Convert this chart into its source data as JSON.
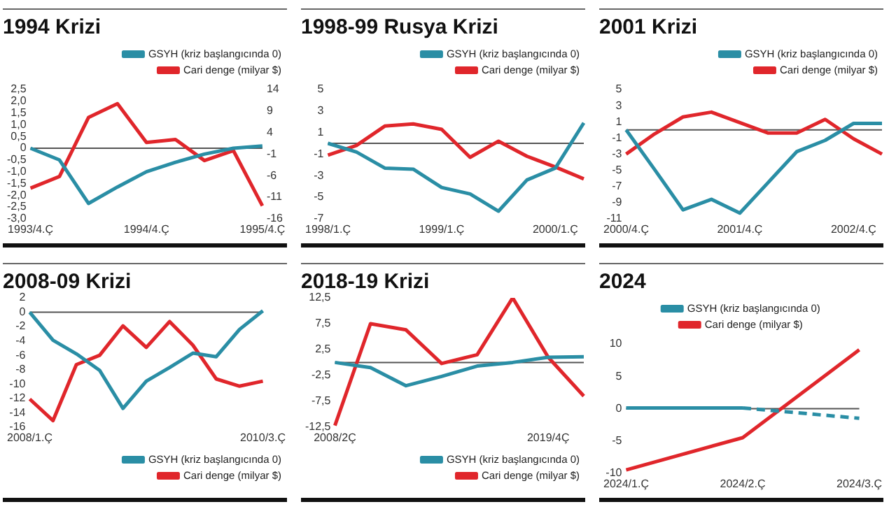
{
  "chart_data": [
    {
      "type": "line",
      "title": "1994 Krizi",
      "categories": [
        "1993/4.Ç",
        null,
        null,
        null,
        "1994/4.Ç",
        null,
        null,
        null,
        "1995/4.Ç"
      ],
      "legend": "top right",
      "series": [
        {
          "name": "GSYH (kriz başlangıcında 0)",
          "color": "#2a8ea5",
          "values": [
            0,
            -0.5,
            -2.35,
            -1.65,
            -1.0,
            -0.6,
            -0.25,
            0,
            0.1
          ]
        },
        {
          "name": "Cari denge (milyar $)",
          "color": "#e0262b",
          "axis": "y2",
          "values": [
            -8.9,
            -6.2,
            7.5,
            10.7,
            1.7,
            2.4,
            -2.5,
            -0.2,
            -13
          ]
        }
      ],
      "ylim": [
        -3,
        2.5
      ],
      "yticks": [
        {
          "value": 2.5,
          "label": "2,5"
        },
        {
          "value": 2,
          "label": "2,0"
        },
        {
          "value": 1.5,
          "label": "1,5"
        },
        {
          "value": 1,
          "label": "1,0"
        },
        {
          "value": 0.5,
          "label": "0,5"
        },
        0,
        {
          "value": -0.5,
          "label": "-0,5"
        },
        {
          "value": -1,
          "label": "-1,0"
        },
        {
          "value": -1.5,
          "label": "-1,5"
        },
        {
          "value": -2,
          "label": "-2,0"
        },
        {
          "value": -2.5,
          "label": "-2,5"
        },
        {
          "value": -3,
          "label": "-3,0"
        }
      ],
      "y2lim": [
        -16,
        14
      ],
      "y2ticks": [
        14,
        9,
        4,
        -1,
        -6,
        -11,
        -16
      ],
      "ref_lines": [
        {
          "axis": "y",
          "value": 0,
          "color": "#555555"
        }
      ]
    },
    {
      "type": "line",
      "title": "1998-99 Rusya Krizi",
      "categories": [
        "1998/1.Ç",
        null,
        null,
        null,
        "1999/1.Ç",
        null,
        null,
        null,
        "2000/1.Ç",
        null
      ],
      "legend": "top right",
      "series": [
        {
          "name": "GSYH (kriz başlangıcında 0)",
          "color": "#2a8ea5",
          "values": [
            0,
            -0.8,
            -2.3,
            -2.4,
            -4.1,
            -4.7,
            -6.3,
            -3.4,
            -2.3,
            1.9
          ]
        },
        {
          "name": "Cari denge (milyar $)",
          "color": "#e0262b",
          "values": [
            -1.1,
            -0.2,
            1.6,
            1.8,
            1.3,
            -1.3,
            0.2,
            -1.2,
            -2.2,
            -3.3
          ]
        }
      ],
      "ylim": [
        -7,
        5
      ],
      "yticks": [
        5,
        3,
        1,
        -1,
        -3,
        -5,
        -7
      ],
      "ref_lines": [
        {
          "axis": "y",
          "value": 0,
          "color": "#555555"
        }
      ]
    },
    {
      "type": "line",
      "title": "2001 Krizi",
      "categories": [
        "2000/4.Ç",
        null,
        null,
        null,
        "2001/4.Ç",
        null,
        null,
        null,
        "2002/4.Ç",
        null
      ],
      "legend": "top right",
      "series": [
        {
          "name": "GSYH (kriz başlangıcında 0)",
          "color": "#2a8ea5",
          "values": [
            0,
            -4.9,
            -9.9,
            -8.6,
            -10.3,
            -6.5,
            -2.7,
            -1.3,
            0.8,
            0.8
          ]
        },
        {
          "name": "Cari denge (milyar $)",
          "color": "#e0262b",
          "values": [
            -3.0,
            -0.5,
            1.6,
            2.2,
            0.9,
            -0.4,
            -0.4,
            1.3,
            -1.1,
            -3.0
          ]
        }
      ],
      "ylim": [
        -11,
        5
      ],
      "yticks": [
        5,
        3,
        1,
        -1,
        -3,
        -5,
        -7,
        -9,
        -11
      ],
      "ref_lines": [
        {
          "axis": "y",
          "value": 0,
          "color": "#555555"
        }
      ]
    },
    {
      "type": "line",
      "title": "2008-09 Krizi",
      "categories": [
        "2008/1.Ç",
        null,
        null,
        null,
        null,
        null,
        null,
        null,
        null,
        null,
        "2010/3.Ç"
      ],
      "legend": "bottom right",
      "series": [
        {
          "name": "GSYH (kriz başlangıcında 0)",
          "color": "#2a8ea5",
          "values": [
            0,
            -3.9,
            -5.8,
            -8.1,
            -13.4,
            -9.6,
            -7.7,
            -5.7,
            -6.2,
            -2.4,
            0.2
          ]
        },
        {
          "name": "Cari denge (milyar $)",
          "color": "#e0262b",
          "values": [
            -12.1,
            -15.1,
            -7.3,
            -6.0,
            -1.9,
            -4.9,
            -1.3,
            -4.6,
            -9.3,
            -10.3,
            -9.6
          ]
        }
      ],
      "ylim": [
        -16,
        2
      ],
      "yticks": [
        2,
        0,
        -2,
        -4,
        -6,
        -8,
        -10,
        -12,
        -14,
        -16
      ],
      "ref_lines": [
        {
          "axis": "y",
          "value": 0,
          "color": "#555555"
        }
      ]
    },
    {
      "type": "line",
      "title": "2018-19 Krizi",
      "categories": [
        "2008/2Ç",
        null,
        null,
        null,
        null,
        null,
        "2019/4Ç",
        null
      ],
      "legend": "bottom right",
      "series": [
        {
          "name": "GSYH (kriz başlangıcında 0)",
          "color": "#2a8ea5",
          "values": [
            0,
            -1.0,
            -4.5,
            -2.7,
            -0.7,
            0,
            1.0,
            1.1
          ]
        },
        {
          "name": "Cari denge (milyar $)",
          "color": "#e0262b",
          "values": [
            -12.2,
            7.5,
            6.3,
            -0.2,
            1.5,
            12.5,
            1.0,
            -6.5
          ]
        }
      ],
      "ylim": [
        -12.5,
        12.5
      ],
      "yticks": [
        {
          "value": 12.5,
          "label": "12,5"
        },
        {
          "value": 7.5,
          "label": "7,5"
        },
        {
          "value": 2.5,
          "label": "2,5"
        },
        {
          "value": -2.5,
          "label": "-2,5"
        },
        {
          "value": -7.5,
          "label": "-7,5"
        },
        {
          "value": -12.5,
          "label": "-12,5"
        }
      ],
      "ref_lines": [
        {
          "axis": "y",
          "value": 0,
          "color": "#555555"
        }
      ]
    },
    {
      "type": "line",
      "title": "2024",
      "categories": [
        "2024/1.Ç",
        "2024/2.Ç",
        "2024/3.Ç"
      ],
      "legend": "top",
      "series": [
        {
          "name": "GSYH (kriz başlangıcında 0)",
          "color": "#2a8ea5",
          "values": [
            0.1,
            0.1,
            null
          ]
        },
        {
          "color": "#2a8ea5",
          "line_style": "dashed",
          "values": [
            null,
            0.1,
            -1.5
          ]
        },
        {
          "name": "Cari denge (milyar $)",
          "color": "#e0262b",
          "values": [
            -9.5,
            -4.5,
            9.1
          ]
        }
      ],
      "ylim": [
        -10,
        10
      ],
      "yticks": [
        10,
        5,
        0,
        -5,
        -10
      ],
      "ref_lines": [
        {
          "axis": "y",
          "value": 0,
          "color": "#555555"
        }
      ]
    }
  ]
}
